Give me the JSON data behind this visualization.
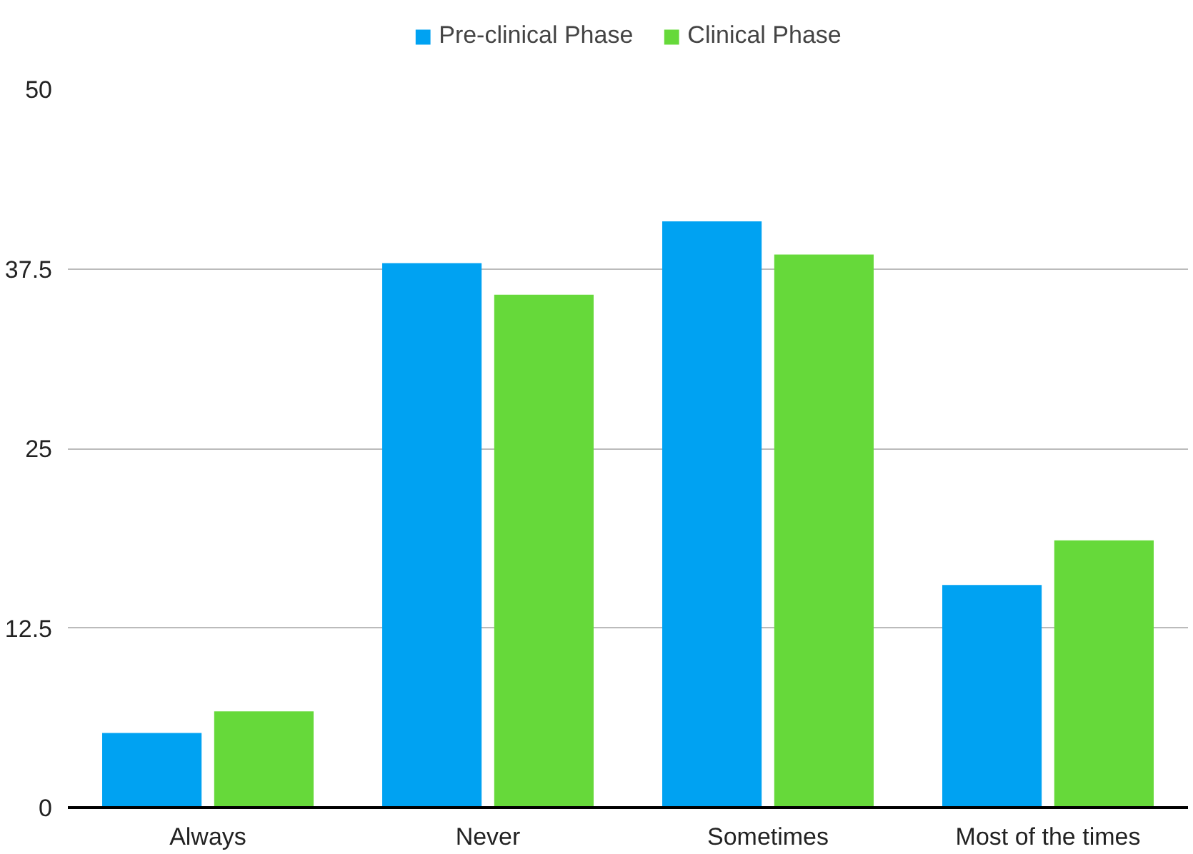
{
  "chart_data": {
    "type": "bar",
    "categories": [
      "Always",
      "Never",
      "Sometimes",
      "Most of the times"
    ],
    "series": [
      {
        "name": "Pre-clinical Phase",
        "color": "#00a2f2",
        "values": [
          5.2,
          37.9,
          40.8,
          15.5
        ]
      },
      {
        "name": "Clinical Phase",
        "color": "#66d93a",
        "values": [
          6.7,
          35.7,
          38.5,
          18.6
        ]
      }
    ],
    "ylim": [
      0,
      50
    ],
    "yticks": [
      0,
      12.5,
      25,
      37.5,
      50
    ],
    "grid": "y",
    "legend": "top"
  }
}
